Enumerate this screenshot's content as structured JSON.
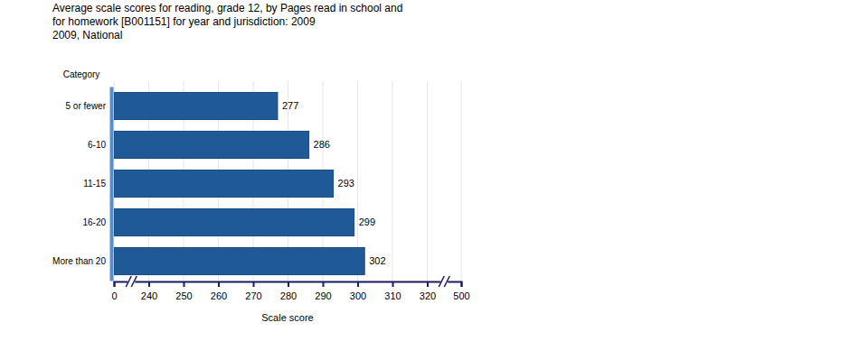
{
  "chart_data": {
    "type": "bar",
    "orientation": "horizontal",
    "title": "Average scale scores for reading, grade 12, by Pages read in school and for homework [B001151] for year and jurisdiction: 2009",
    "subtitle": "2009, National",
    "y_label": "Category",
    "x_label": "Scale score",
    "categories": [
      "5 or fewer",
      "6-10",
      "11-15",
      "16-20",
      "More than 20"
    ],
    "values": [
      277,
      286,
      293,
      299,
      302
    ],
    "color": "#1f5a96",
    "xlim": [
      0,
      500
    ],
    "xticks": [
      0,
      240,
      250,
      260,
      270,
      280,
      290,
      300,
      310,
      320,
      500
    ],
    "grid": true,
    "data_labels": true
  }
}
